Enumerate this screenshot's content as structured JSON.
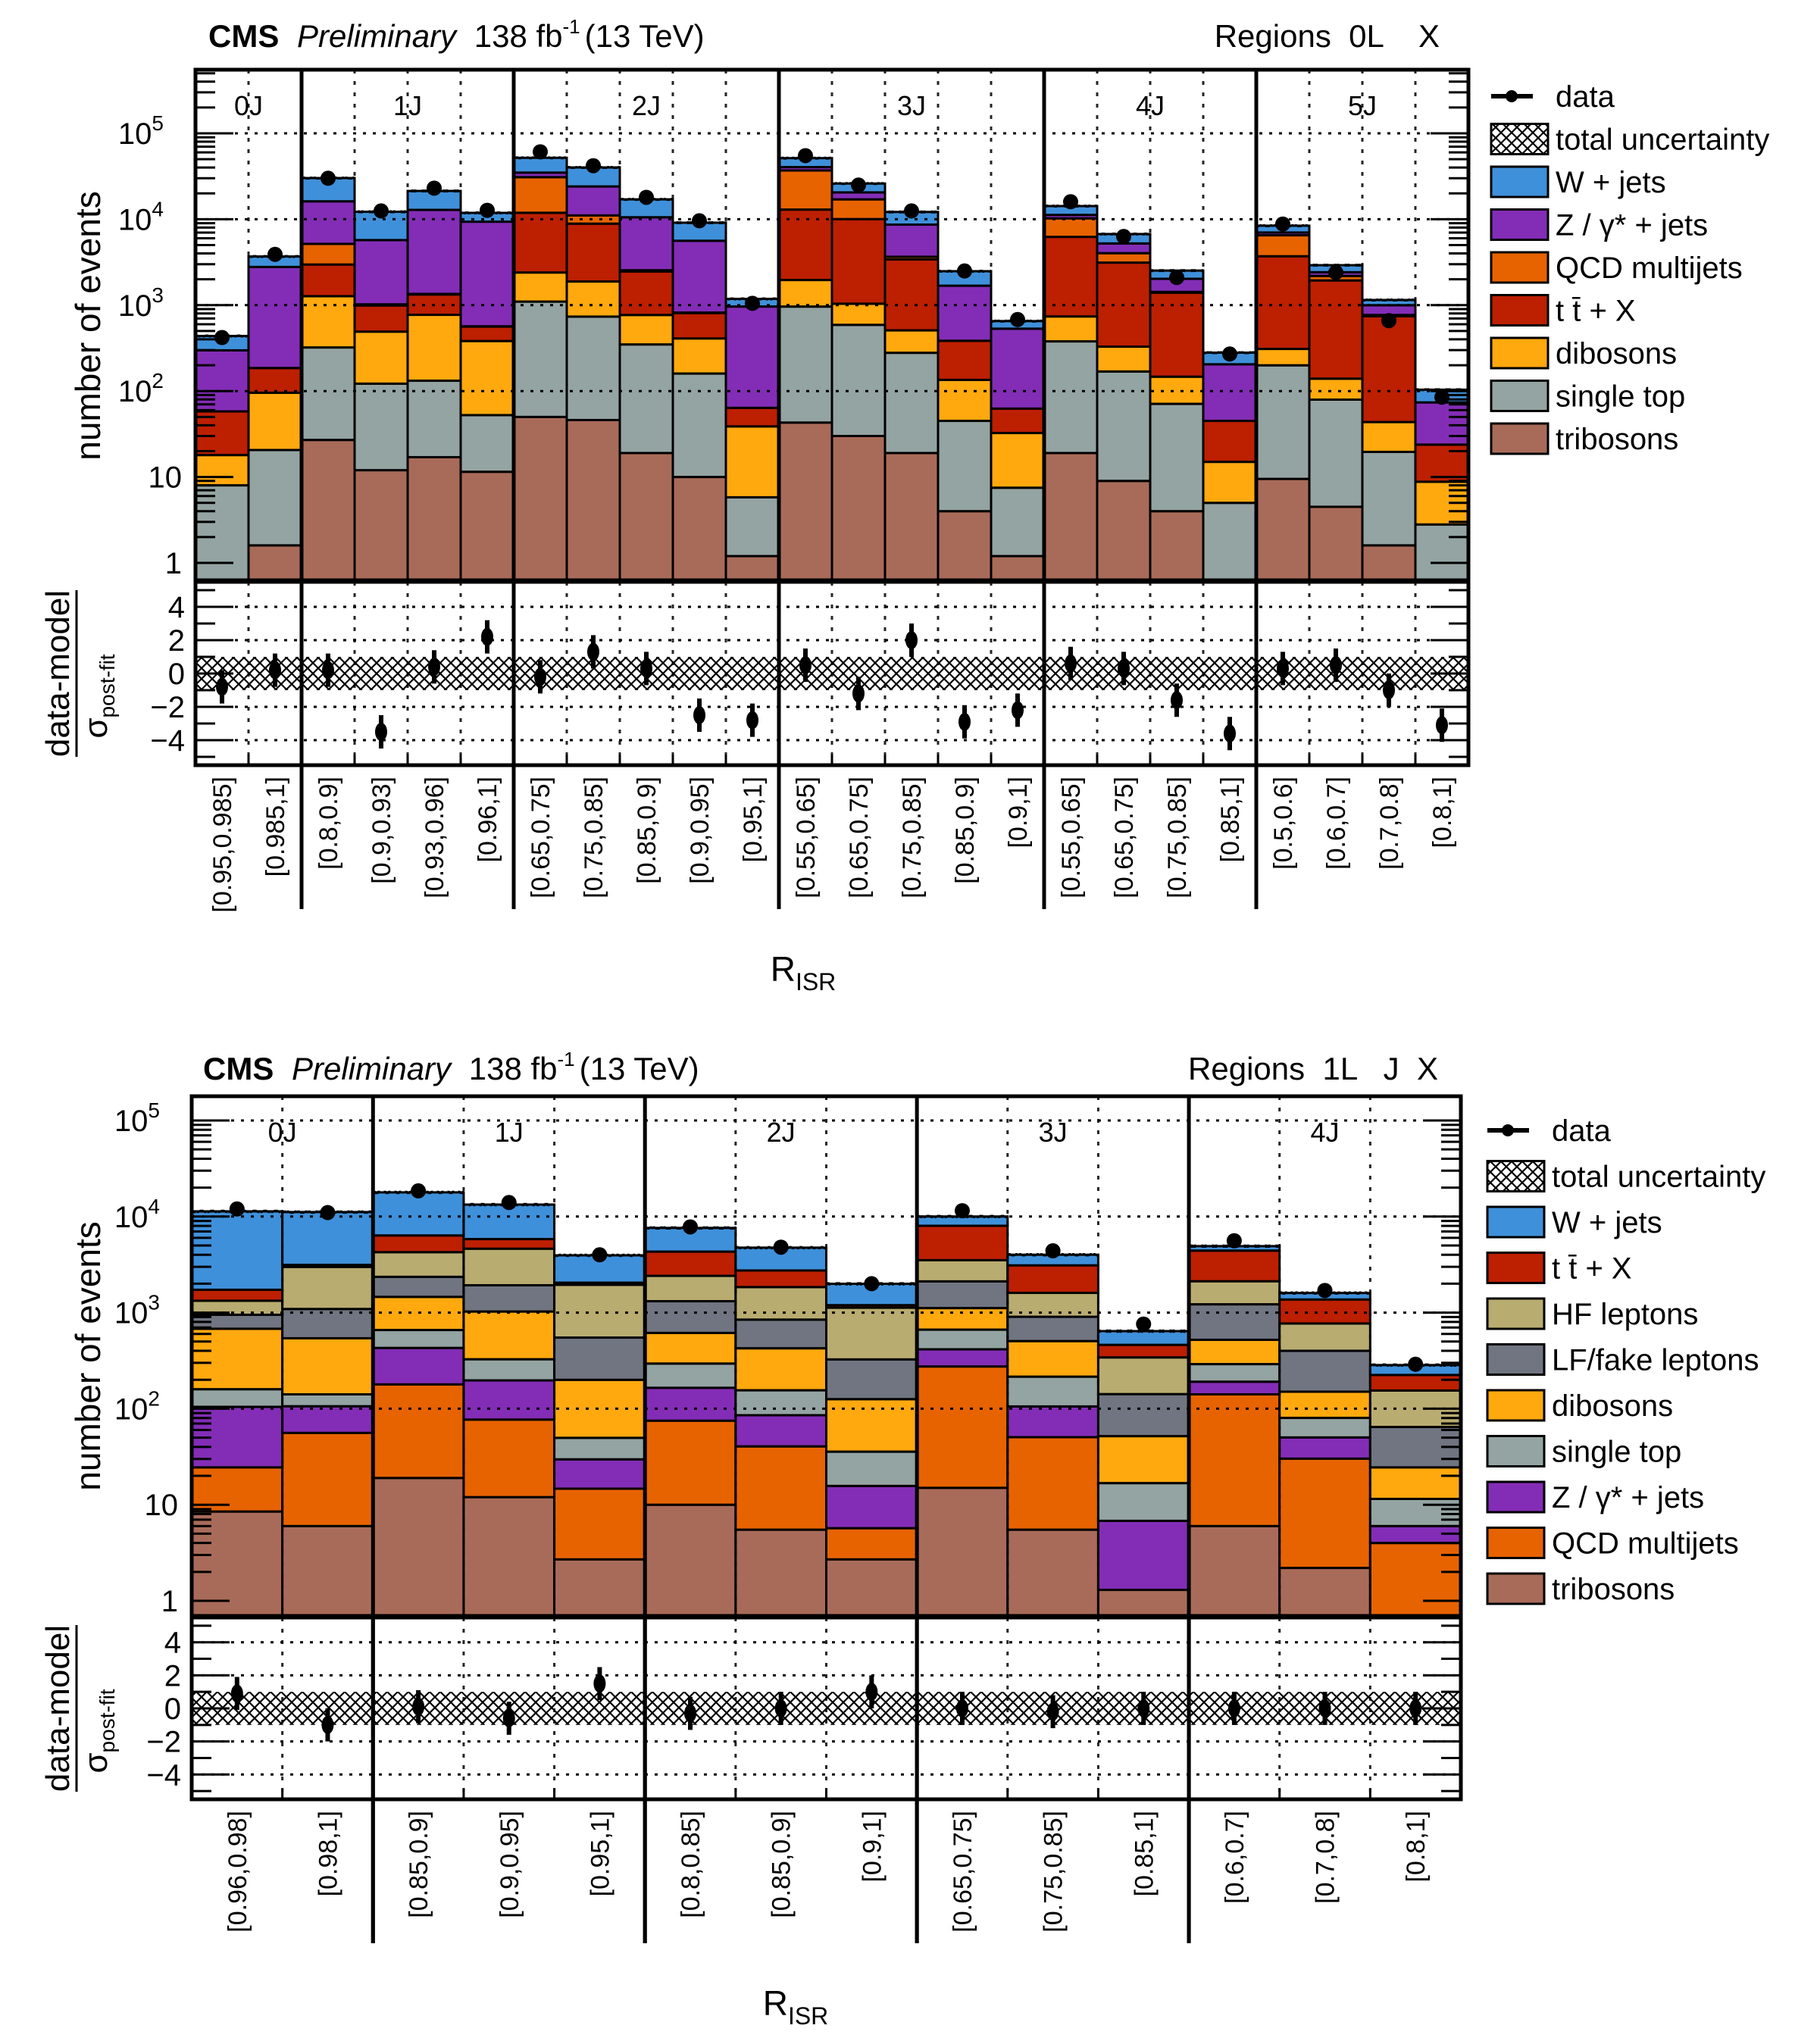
{
  "chart_data": [
    {
      "type": "bar",
      "stacked": true,
      "yscale": "log",
      "header": {
        "experiment": "CMS",
        "status": "Preliminary",
        "lumi_value": "138 fb",
        "lumi_exp": "-1",
        "energy": "(13 TeV)",
        "region_label": "Regions  0L    X"
      },
      "ylabel": "number of events",
      "xlabel_main": "R",
      "xlabel_sub": "ISR",
      "ratio_ylabel_num": "data-model",
      "ratio_ylabel_den_sym": "σ",
      "ratio_ylabel_den_sub": "post-fit",
      "ylim": [
        0.5,
        700000
      ],
      "yticks": [
        {
          "v": 1,
          "label": "1"
        },
        {
          "v": 10,
          "label": "10"
        },
        {
          "v": 100,
          "label": "10",
          "exp": "2"
        },
        {
          "v": 1000,
          "label": "10",
          "exp": "3"
        },
        {
          "v": 10000,
          "label": "10",
          "exp": "4"
        },
        {
          "v": 100000,
          "label": "10",
          "exp": "5"
        }
      ],
      "ratio_ylim": [
        -5.5,
        5.5
      ],
      "ratio_yticks": [
        "4",
        "2",
        "0",
        "−2",
        "−4"
      ],
      "ratio_ytick_values": [
        4,
        2,
        0,
        -2,
        -4
      ],
      "ratio_band": 1.0,
      "groups": [
        {
          "label": "0J",
          "nbins": 2
        },
        {
          "label": "1J",
          "nbins": 4
        },
        {
          "label": "2J",
          "nbins": 5
        },
        {
          "label": "3J",
          "nbins": 5
        },
        {
          "label": "4J",
          "nbins": 4
        },
        {
          "label": "5J",
          "nbins": 4
        }
      ],
      "categories": [
        "[0.95,0.985]",
        "[0.985,1]",
        "[0.8,0.9]",
        "[0.9,0.93]",
        "[0.93,0.96]",
        "[0.96,1]",
        "[0.65,0.75]",
        "[0.75,0.85]",
        "[0.85,0.9]",
        "[0.9,0.95]",
        "[0.95,1]",
        "[0.55,0.65]",
        "[0.65,0.75]",
        "[0.75,0.85]",
        "[0.85,0.9]",
        "[0.9,1]",
        "[0.55,0.65]",
        "[0.65,0.75]",
        "[0.75,0.85]",
        "[0.85,1]",
        "[0.5,0.6]",
        "[0.6,0.7]",
        "[0.7,0.8]",
        "[0.8,1]"
      ],
      "legend": [
        {
          "name": "data",
          "kind": "marker"
        },
        {
          "name": "total uncertainty",
          "kind": "hatch"
        },
        {
          "name": "W + jets",
          "color": "#3f90da"
        },
        {
          "name": "Z / γ* + jets",
          "color": "#832db6"
        },
        {
          "name": "QCD multijets",
          "color": "#e76300"
        },
        {
          "name": "t t̄ + X",
          "color": "#bd1f01"
        },
        {
          "name": "dibosons",
          "color": "#ffa90e"
        },
        {
          "name": "single top",
          "color": "#94a4a2"
        },
        {
          "name": "tribosons",
          "color": "#a96b59"
        }
      ],
      "stack_order_bottom_to_top": [
        "tribosons",
        "single top",
        "dibosons",
        "t t̄ + X",
        "QCD multijets",
        "Z / γ* + jets",
        "W + jets"
      ],
      "series": [
        {
          "name": "tribosons",
          "color": "#a96b59",
          "values": [
            0,
            1.6,
            27,
            12,
            17,
            11.5,
            50,
            46,
            19,
            10,
            1.2,
            43,
            30,
            19,
            4,
            1.2,
            19,
            9,
            4,
            0,
            9.5,
            4.5,
            1.6,
            0
          ]
        },
        {
          "name": "single top",
          "color": "#94a4a2",
          "values": [
            8,
            19,
            295,
            110,
            115,
            41,
            1050,
            690,
            330,
            150,
            4.6,
            920,
            560,
            260,
            41,
            6.3,
            360,
            160,
            67,
            5,
            190,
            75,
            18,
            2.8
          ]
        },
        {
          "name": "dibosons",
          "color": "#ffa90e",
          "values": [
            10,
            75,
            950,
            370,
            640,
            330,
            1300,
            1150,
            420,
            250,
            33,
            1000,
            450,
            230,
            90,
            25,
            360,
            160,
            76,
            10,
            110,
            60,
            24,
            6
          ]
        },
        {
          "name": "t t̄ + X",
          "color": "#bd1f01",
          "values": [
            40,
            90,
            1700,
            500,
            560,
            180,
            9500,
            7000,
            1700,
            400,
            25,
            11000,
            9000,
            2900,
            250,
            30,
            5500,
            2800,
            1250,
            30,
            3400,
            1800,
            700,
            15
          ]
        },
        {
          "name": "QCD multijets",
          "color": "#e76300",
          "values": [
            0,
            0,
            2200,
            30,
            20,
            5,
            19000,
            2200,
            80,
            10,
            0,
            24000,
            7000,
            250,
            0,
            0,
            4000,
            900,
            30,
            0,
            2800,
            250,
            25,
            0
          ]
        },
        {
          "name": "Z / γ* + jets",
          "color": "#832db6",
          "values": [
            240,
            2600,
            11000,
            4700,
            11500,
            8800,
            4000,
            13000,
            8000,
            4800,
            900,
            3500,
            3500,
            5000,
            1300,
            470,
            1000,
            1200,
            600,
            160,
            500,
            230,
            230,
            50
          ]
        },
        {
          "name": "W + jets",
          "color": "#3f90da",
          "values": [
            140,
            900,
            14000,
            6500,
            8500,
            2500,
            17000,
            16000,
            6500,
            3500,
            220,
            11000,
            5500,
            3500,
            800,
            120,
            3000,
            1500,
            500,
            75,
            1400,
            500,
            150,
            30
          ]
        }
      ],
      "data": {
        "name": "data",
        "values": [
          420,
          3900,
          30000,
          12500,
          23000,
          12700,
          61000,
          42000,
          18000,
          9600,
          1050,
          55000,
          25000,
          12500,
          2500,
          680,
          16000,
          6300,
          2100,
          270,
          8800,
          2400,
          660,
          85
        ]
      },
      "pulls": [
        -0.8,
        0.2,
        0.2,
        -3.5,
        0.4,
        2.2,
        -0.2,
        1.3,
        0.3,
        -2.5,
        -2.8,
        0.5,
        -1.2,
        2.0,
        -2.9,
        -2.2,
        0.6,
        0.3,
        -1.6,
        -3.6,
        0.3,
        0.5,
        -1.0,
        -3.1
      ],
      "pull_errors": [
        1,
        1,
        1,
        1,
        1,
        1,
        1,
        1,
        1,
        1,
        1,
        1,
        1,
        1,
        1,
        1,
        1,
        1,
        1,
        1,
        1,
        1,
        1,
        1
      ]
    },
    {
      "type": "bar",
      "stacked": true,
      "yscale": "log",
      "header": {
        "experiment": "CMS",
        "status": "Preliminary",
        "lumi_value": "138 fb",
        "lumi_exp": "-1",
        "energy": "(13 TeV)",
        "region_label": "Regions  1L   J  X"
      },
      "ylabel": "number of events",
      "xlabel_main": "R",
      "xlabel_sub": "ISR",
      "ratio_ylabel_num": "data-model",
      "ratio_ylabel_den_sym": "σ",
      "ratio_ylabel_den_sub": "post-fit",
      "ylim": [
        0.5,
        200000
      ],
      "yticks": [
        {
          "v": 1,
          "label": "1"
        },
        {
          "v": 10,
          "label": "10"
        },
        {
          "v": 100,
          "label": "10",
          "exp": "2"
        },
        {
          "v": 1000,
          "label": "10",
          "exp": "3"
        },
        {
          "v": 10000,
          "label": "10",
          "exp": "4"
        },
        {
          "v": 100000,
          "label": "10",
          "exp": "5"
        }
      ],
      "ratio_ylim": [
        -5.5,
        5.5
      ],
      "ratio_yticks": [
        "4",
        "2",
        "0",
        "−2",
        "−4"
      ],
      "ratio_ytick_values": [
        4,
        2,
        0,
        -2,
        -4
      ],
      "ratio_band": 1.0,
      "groups": [
        {
          "label": "0J",
          "nbins": 2
        },
        {
          "label": "1J",
          "nbins": 3
        },
        {
          "label": "2J",
          "nbins": 3
        },
        {
          "label": "3J",
          "nbins": 3
        },
        {
          "label": "4J",
          "nbins": 3
        }
      ],
      "categories": [
        "[0.96,0.98]",
        "[0.98,1]",
        "[0.85,0.9]",
        "[0.9,0.95]",
        "[0.95,1]",
        "[0.8,0.85]",
        "[0.85,0.9]",
        "[0.9,1]",
        "[0.65,0.75]",
        "[0.75,0.85]",
        "[0.85,1]",
        "[0.6,0.7]",
        "[0.7,0.8]",
        "[0.8,1]"
      ],
      "legend": [
        {
          "name": "data",
          "kind": "marker"
        },
        {
          "name": "total uncertainty",
          "kind": "hatch"
        },
        {
          "name": "W + jets",
          "color": "#3f90da"
        },
        {
          "name": "t t̄ + X",
          "color": "#bd1f01"
        },
        {
          "name": "HF leptons",
          "color": "#b9ac70"
        },
        {
          "name": "LF/fake leptons",
          "color": "#717581"
        },
        {
          "name": "dibosons",
          "color": "#ffa90e"
        },
        {
          "name": "single top",
          "color": "#94a4a2"
        },
        {
          "name": "Z / γ* + jets",
          "color": "#832db6"
        },
        {
          "name": "QCD multijets",
          "color": "#e76300"
        },
        {
          "name": "tribosons",
          "color": "#a96b59"
        }
      ],
      "stack_order_bottom_to_top": [
        "tribosons",
        "QCD multijets",
        "Z / γ* + jets",
        "single top",
        "dibosons",
        "LF/fake leptons",
        "HF leptons",
        "t t̄ + X",
        "W + jets"
      ],
      "series": [
        {
          "name": "tribosons",
          "color": "#a96b59",
          "values": [
            8.5,
            6,
            19,
            12,
            2.7,
            10,
            5.5,
            2.7,
            15,
            5.5,
            1.3,
            6,
            2.2,
            0
          ]
        },
        {
          "name": "QCD multijets",
          "color": "#e76300",
          "values": [
            16,
            50,
            160,
            65,
            12,
            65,
            35,
            3,
            260,
            45,
            0,
            135,
            28,
            4
          ]
        },
        {
          "name": "Z / γ* + jets",
          "color": "#832db6",
          "values": [
            80,
            50,
            250,
            120,
            15,
            90,
            45,
            10,
            140,
            55,
            5.5,
            50,
            20,
            2
          ]
        },
        {
          "name": "single top",
          "color": "#94a4a2",
          "values": [
            55,
            35,
            230,
            130,
            20,
            130,
            70,
            20,
            250,
            110,
            10,
            100,
            30,
            5.5
          ]
        },
        {
          "name": "dibosons",
          "color": "#ffa90e",
          "values": [
            520,
            400,
            800,
            700,
            150,
            320,
            270,
            90,
            450,
            290,
            35,
            230,
            70,
            13
          ]
        },
        {
          "name": "LF/fake leptons",
          "color": "#717581",
          "values": [
            270,
            550,
            900,
            900,
            350,
            700,
            420,
            200,
            1000,
            400,
            90,
            700,
            250,
            40
          ]
        },
        {
          "name": "HF leptons",
          "color": "#b9ac70",
          "values": [
            380,
            1900,
            1900,
            2700,
            1400,
            1100,
            1000,
            800,
            1400,
            700,
            200,
            900,
            370,
            90
          ]
        },
        {
          "name": "t t̄ + X",
          "color": "#bd1f01",
          "values": [
            400,
            150,
            2100,
            1200,
            100,
            1900,
            900,
            70,
            4500,
            1500,
            120,
            2300,
            600,
            70
          ]
        },
        {
          "name": "W + jets",
          "color": "#3f90da",
          "values": [
            9600,
            8000,
            11500,
            7500,
            1900,
            3300,
            2000,
            800,
            2000,
            900,
            180,
            500,
            230,
            60
          ]
        }
      ],
      "data": {
        "name": "data",
        "values": [
          12000,
          11000,
          18500,
          14000,
          4000,
          7800,
          4800,
          2000,
          11500,
          4400,
          760,
          5600,
          1700,
          290
        ]
      },
      "pulls": [
        0.9,
        -1.0,
        0.1,
        -0.6,
        1.5,
        -0.3,
        0.0,
        1.0,
        0.0,
        -0.2,
        0.0,
        0.0,
        0.0,
        0.0
      ],
      "pull_errors": [
        1,
        1,
        1,
        1,
        1,
        1,
        1,
        1,
        1,
        1,
        1,
        1,
        1,
        1
      ]
    }
  ]
}
